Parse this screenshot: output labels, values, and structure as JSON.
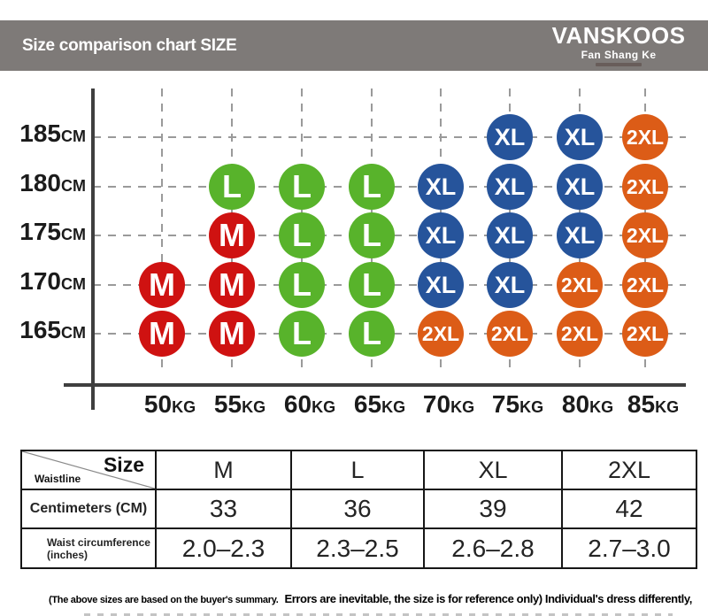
{
  "header": {
    "title": "Size comparison chart SIZE",
    "brand_name": "VANSKOOS",
    "brand_subtitle": "Fan Shang Ke",
    "bar_color": "#7e7a78"
  },
  "chart_data": {
    "type": "scatter",
    "title": "",
    "xlabel": "",
    "ylabel": "",
    "x_categories": [
      "50KG",
      "55KG",
      "60KG",
      "65KG",
      "70KG",
      "75KG",
      "80KG",
      "85KG"
    ],
    "y_categories": [
      "185CM",
      "180CM",
      "175CM",
      "170CM",
      "165CM"
    ],
    "grid": "dashed",
    "legend": "none",
    "size_colors": {
      "M": "#cf1211",
      "L": "#58b32b",
      "XL": "#26549b",
      "2XL": "#dc5c17"
    },
    "points": [
      {
        "x": "75KG",
        "y": "185CM",
        "size": "XL"
      },
      {
        "x": "80KG",
        "y": "185CM",
        "size": "XL"
      },
      {
        "x": "85KG",
        "y": "185CM",
        "size": "2XL"
      },
      {
        "x": "55KG",
        "y": "180CM",
        "size": "L"
      },
      {
        "x": "60KG",
        "y": "180CM",
        "size": "L"
      },
      {
        "x": "65KG",
        "y": "180CM",
        "size": "L"
      },
      {
        "x": "70KG",
        "y": "180CM",
        "size": "XL"
      },
      {
        "x": "75KG",
        "y": "180CM",
        "size": "XL"
      },
      {
        "x": "80KG",
        "y": "180CM",
        "size": "XL"
      },
      {
        "x": "85KG",
        "y": "180CM",
        "size": "2XL"
      },
      {
        "x": "55KG",
        "y": "175CM",
        "size": "M"
      },
      {
        "x": "60KG",
        "y": "175CM",
        "size": "L"
      },
      {
        "x": "65KG",
        "y": "175CM",
        "size": "L"
      },
      {
        "x": "70KG",
        "y": "175CM",
        "size": "XL"
      },
      {
        "x": "75KG",
        "y": "175CM",
        "size": "XL"
      },
      {
        "x": "80KG",
        "y": "175CM",
        "size": "XL"
      },
      {
        "x": "85KG",
        "y": "175CM",
        "size": "2XL"
      },
      {
        "x": "50KG",
        "y": "170CM",
        "size": "M"
      },
      {
        "x": "55KG",
        "y": "170CM",
        "size": "M"
      },
      {
        "x": "60KG",
        "y": "170CM",
        "size": "L"
      },
      {
        "x": "65KG",
        "y": "170CM",
        "size": "L"
      },
      {
        "x": "70KG",
        "y": "170CM",
        "size": "XL"
      },
      {
        "x": "75KG",
        "y": "170CM",
        "size": "XL"
      },
      {
        "x": "80KG",
        "y": "170CM",
        "size": "2XL"
      },
      {
        "x": "85KG",
        "y": "170CM",
        "size": "2XL"
      },
      {
        "x": "50KG",
        "y": "165CM",
        "size": "M"
      },
      {
        "x": "55KG",
        "y": "165CM",
        "size": "M"
      },
      {
        "x": "60KG",
        "y": "165CM",
        "size": "L"
      },
      {
        "x": "65KG",
        "y": "165CM",
        "size": "L"
      },
      {
        "x": "70KG",
        "y": "165CM",
        "size": "2XL"
      },
      {
        "x": "75KG",
        "y": "165CM",
        "size": "2XL"
      },
      {
        "x": "80KG",
        "y": "165CM",
        "size": "2XL"
      },
      {
        "x": "85KG",
        "y": "165CM",
        "size": "2XL"
      }
    ]
  },
  "table": {
    "corner_top_right": "Size",
    "corner_bottom_left": "Waistline",
    "columns": [
      "M",
      "L",
      "XL",
      "2XL"
    ],
    "rows": [
      {
        "label": "Centimeters (CM)",
        "values": [
          "33",
          "36",
          "39",
          "42"
        ]
      },
      {
        "label": "Waist circumference (inches)",
        "values": [
          "2.0–2.3",
          "2.3–2.5",
          "2.6–2.8",
          "2.7–3.0"
        ]
      }
    ]
  },
  "footer": {
    "note_small": "(The above sizes are based on the buyer's summary.",
    "note_large": "Errors are inevitable, the size is for reference only) Individual's dress differently,"
  },
  "colors": {
    "header_bar": "#7e7a78",
    "axis": "#3f3f3f",
    "gridline": "#9a9a9a",
    "table_border": "#161616"
  }
}
